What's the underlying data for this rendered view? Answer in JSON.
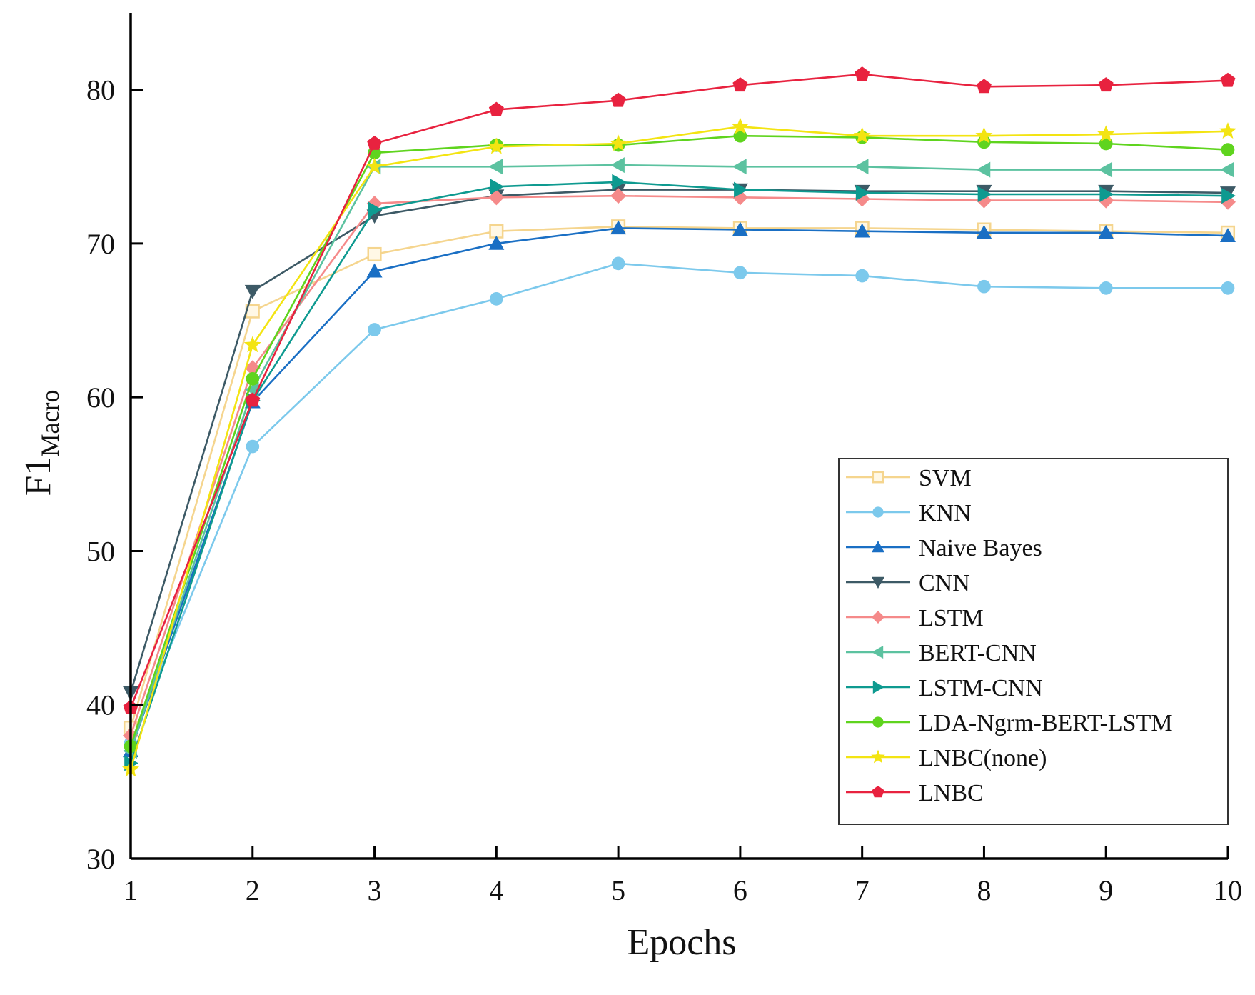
{
  "chart_data": {
    "type": "line",
    "title": "",
    "xlabel": "Epochs",
    "ylabel": "F1",
    "ylabel_sub": "Macro",
    "xlim": [
      1,
      10
    ],
    "ylim": [
      30,
      85
    ],
    "x": [
      1,
      2,
      3,
      4,
      5,
      6,
      7,
      8,
      9,
      10
    ],
    "x_ticks": [
      "1",
      "2",
      "3",
      "4",
      "5",
      "6",
      "7",
      "8",
      "9",
      "10"
    ],
    "y_ticks": [
      30,
      40,
      50,
      60,
      70,
      80
    ],
    "y_tick_labels": [
      "30",
      "40",
      "50",
      "60",
      "70",
      "80"
    ],
    "legend_position": "bottom-right",
    "series": [
      {
        "name": "SVM",
        "color": "#f5d58e",
        "marker": "square-open",
        "values": [
          38.5,
          65.6,
          69.3,
          70.8,
          71.1,
          71.0,
          71.0,
          70.9,
          70.8,
          70.7
        ]
      },
      {
        "name": "KNN",
        "color": "#7cc9ec",
        "marker": "circle",
        "values": [
          37.5,
          56.8,
          64.4,
          66.4,
          68.7,
          68.1,
          67.9,
          67.2,
          67.1,
          67.1
        ]
      },
      {
        "name": "Naive Bayes",
        "color": "#1a6fc4",
        "marker": "triangle-up",
        "values": [
          37.0,
          59.7,
          68.2,
          70.0,
          71.0,
          70.9,
          70.8,
          70.7,
          70.7,
          70.5
        ]
      },
      {
        "name": "CNN",
        "color": "#3d5a66",
        "marker": "triangle-down",
        "values": [
          40.8,
          66.9,
          71.8,
          73.1,
          73.5,
          73.5,
          73.4,
          73.4,
          73.4,
          73.3
        ]
      },
      {
        "name": "LSTM",
        "color": "#f58a8a",
        "marker": "diamond",
        "values": [
          38.0,
          61.9,
          72.6,
          73.0,
          73.1,
          73.0,
          72.9,
          72.8,
          72.8,
          72.7
        ]
      },
      {
        "name": "BERT-CNN",
        "color": "#5cc2a0",
        "marker": "triangle-left",
        "values": [
          37.0,
          60.5,
          75.0,
          75.0,
          75.1,
          75.0,
          75.0,
          74.8,
          74.8,
          74.8
        ]
      },
      {
        "name": "LSTM-CNN",
        "color": "#0e9a90",
        "marker": "triangle-right",
        "values": [
          36.2,
          59.8,
          72.2,
          73.7,
          74.0,
          73.5,
          73.3,
          73.2,
          73.2,
          73.1
        ]
      },
      {
        "name": "LDA-Ngrm-BERT-LSTM",
        "color": "#5fd41e",
        "marker": "circle",
        "values": [
          37.3,
          61.2,
          75.9,
          76.4,
          76.4,
          77.0,
          76.9,
          76.6,
          76.5,
          76.1
        ]
      },
      {
        "name": "LNBC(none)",
        "color": "#f3e412",
        "marker": "star",
        "values": [
          35.8,
          63.4,
          75.0,
          76.3,
          76.5,
          77.6,
          77.0,
          77.0,
          77.1,
          77.3
        ]
      },
      {
        "name": "LNBC",
        "color": "#e8223f",
        "marker": "pentagon",
        "values": [
          39.8,
          59.8,
          76.5,
          78.7,
          79.3,
          80.3,
          81.0,
          80.2,
          80.3,
          80.6
        ]
      }
    ]
  }
}
